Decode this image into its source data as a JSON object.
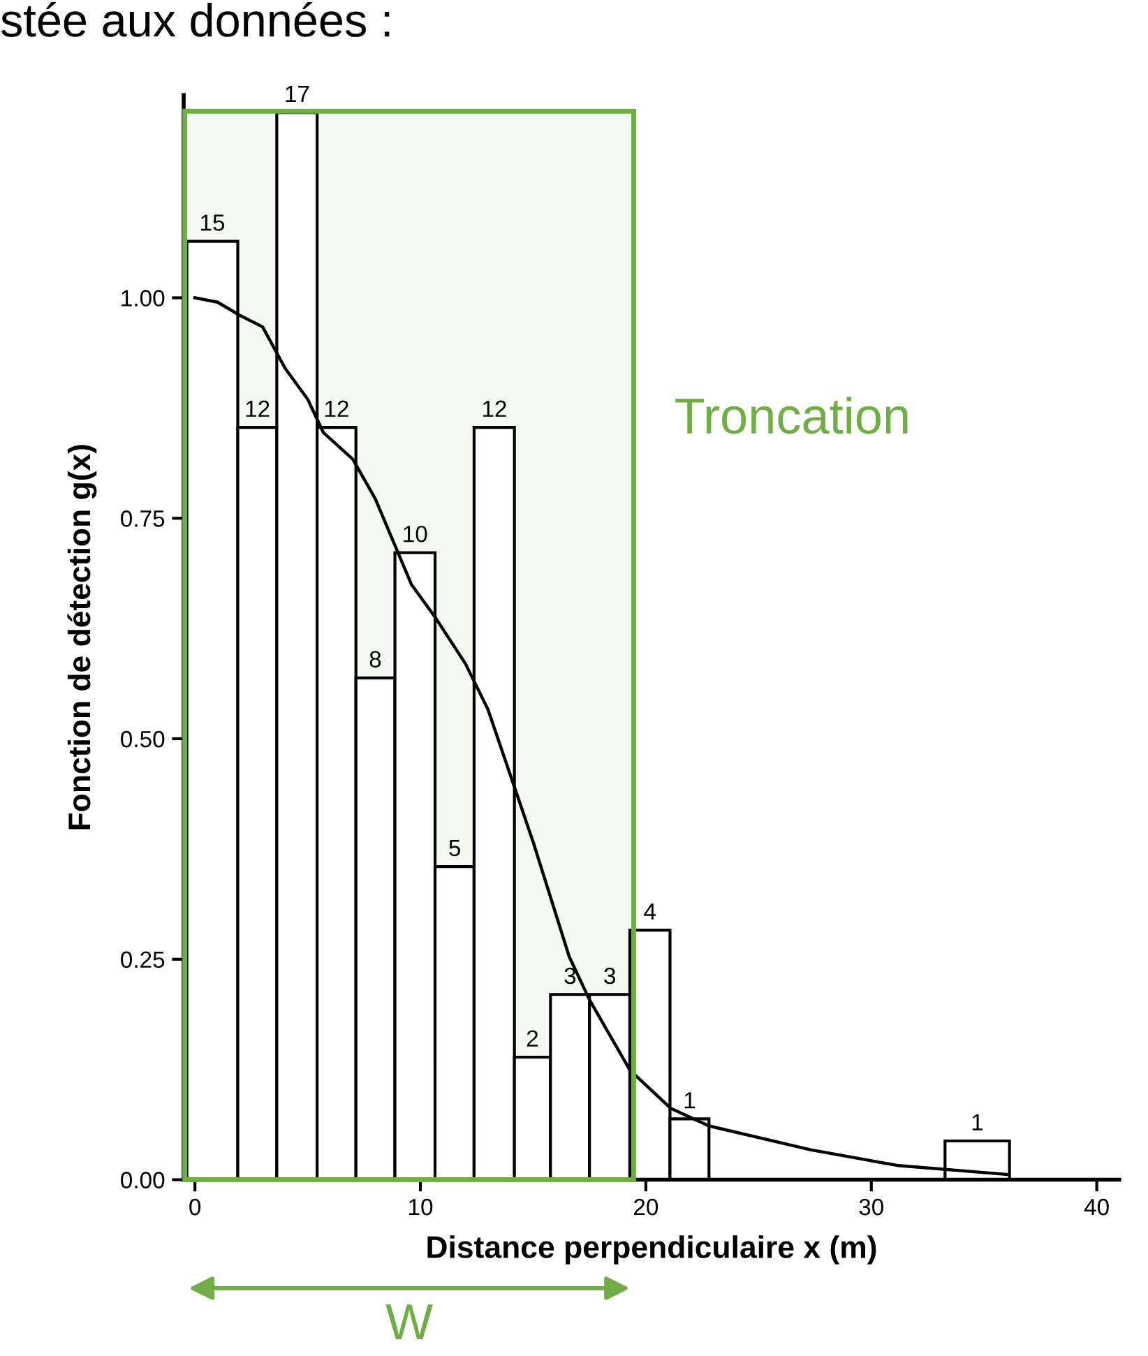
{
  "chart_data": {
    "type": "histogram",
    "title": "stée aux données :",
    "xlabel": "Distance perpendiculaire x (m)",
    "ylabel": "Fonction de détection g(x)",
    "bins": [
      -0.36,
      1.9,
      3.63,
      5.42,
      7.14,
      8.87,
      10.65,
      12.38,
      14.17,
      15.77,
      17.5,
      19.29,
      21.07,
      22.8,
      33.27,
      36.13
    ],
    "values": [
      1.064,
      0.853,
      1.21,
      0.853,
      0.569,
      0.711,
      0.355,
      0.853,
      0.139,
      0.21,
      0.21,
      0.283,
      0.069,
      0,
      0.044
    ],
    "color": "#000000",
    "series": [
      {
        "type": "line",
        "color": "#000000",
        "x": [
          0,
          1,
          2,
          3,
          4,
          5,
          5.7,
          7,
          8,
          9.6,
          10.65,
          12,
          13,
          14,
          15,
          16.6,
          17.5,
          19.3,
          21.1,
          22.8,
          27.3,
          31.2,
          36
        ],
        "values": [
          1.0,
          0.995,
          0.98,
          0.967,
          0.92,
          0.885,
          0.847,
          0.817,
          0.772,
          0.675,
          0.638,
          0.585,
          0.533,
          0.458,
          0.383,
          0.253,
          0.204,
          0.124,
          0.081,
          0.061,
          0.034,
          0.016,
          0.006
        ]
      }
    ],
    "bands": [
      {
        "axis": "x",
        "from": -0.45,
        "to": 19.46,
        "label": "Troncation",
        "color": "#70ad47"
      }
    ],
    "annotations": [
      "W",
      {
        "text": "15",
        "x": 0.77,
        "y": 1.064
      },
      {
        "text": "12",
        "x": 2.77,
        "y": 0.853
      },
      {
        "text": "17",
        "x": 4.53,
        "y": 1.21
      },
      {
        "text": "12",
        "x": 6.28,
        "y": 0.853
      },
      {
        "text": "8",
        "x": 8.0,
        "y": 0.569
      },
      {
        "text": "10",
        "x": 9.76,
        "y": 0.711
      },
      {
        "text": "5",
        "x": 11.52,
        "y": 0.355
      },
      {
        "text": "12",
        "x": 13.28,
        "y": 0.853
      },
      {
        "text": "2",
        "x": 14.97,
        "y": 0.139
      },
      {
        "text": "3",
        "x": 16.64,
        "y": 0.21
      },
      {
        "text": "3",
        "x": 18.4,
        "y": 0.21
      },
      {
        "text": "4",
        "x": 20.18,
        "y": 0.283
      },
      {
        "text": "1",
        "x": 21.94,
        "y": 0.069
      },
      {
        "text": "1",
        "x": 34.7,
        "y": 0.044
      }
    ],
    "xlim": [
      -0.5,
      41
    ],
    "ylim": [
      0,
      1.23
    ],
    "xticks": [
      0,
      10,
      20,
      30,
      40
    ],
    "yticks": [
      {
        "value": 0,
        "label": "0.00"
      },
      {
        "value": 0.25,
        "label": "0.25"
      },
      {
        "value": 0.5,
        "label": "0.50"
      },
      {
        "value": 0.75,
        "label": "0.75"
      },
      {
        "value": 1,
        "label": "1.00"
      }
    ],
    "grid": false
  }
}
